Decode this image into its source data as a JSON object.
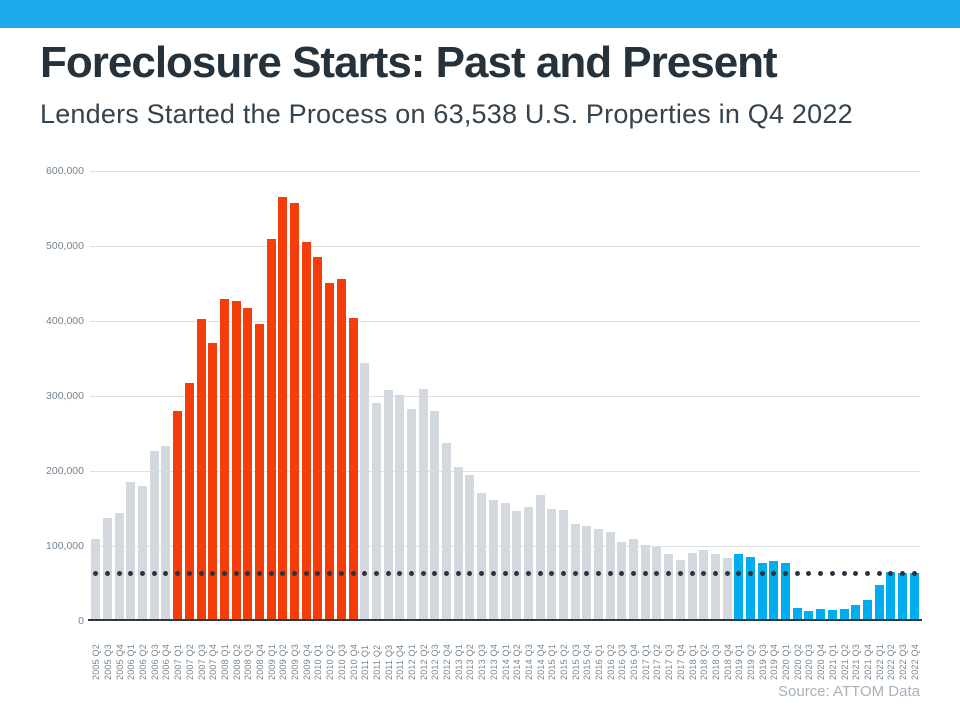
{
  "page": {
    "title": "Foreclosure Starts: Past and Present",
    "subtitle": "Lenders Started the Process on 63,538 U.S. Properties in Q4 2022",
    "source": "Source: ATTOM Data"
  },
  "colors": {
    "banner": "#1BABEB",
    "bar_default": "#D3D9DE",
    "bar_crisis": "#F43D0B",
    "bar_recent": "#00AEEF",
    "reference_dots": "#293440",
    "gridline": "#DCE1E5",
    "axis_line": "#2F3943",
    "axis_text": "#76848F",
    "title_text": "#25313B",
    "subtitle_text": "#34434E",
    "source_text": "#A7B2BB"
  },
  "chart_data": {
    "type": "bar",
    "title": "Foreclosure Starts: Past and Present",
    "subtitle": "Lenders Started the Process on 63,538 U.S. Properties in Q4 2022",
    "xlabel": "",
    "ylabel": "",
    "ylim": [
      0,
      600000
    ],
    "grid": true,
    "legend": "none",
    "source": "Source: ATTOM Data",
    "y_axis": {
      "ticks": [
        {
          "value": 0,
          "label": "0"
        },
        {
          "value": 100000,
          "label": "100,000"
        },
        {
          "value": 200000,
          "label": "200,000"
        },
        {
          "value": 300000,
          "label": "300,000"
        },
        {
          "value": 400000,
          "label": "400,000"
        },
        {
          "value": 500000,
          "label": "500,000"
        },
        {
          "value": 600000,
          "label": "600,000"
        }
      ]
    },
    "reference_line": {
      "value": 63538,
      "style": "dotted",
      "meaning": "Q4 2022 level"
    },
    "segments": {
      "crisis": {
        "from": "2007 Q1",
        "to": "2010 Q4",
        "color_key": "bar_crisis"
      },
      "recent": {
        "from": "2019 Q1",
        "to": "2022 Q4",
        "color_key": "bar_recent"
      }
    },
    "categories": [
      "2005 Q2",
      "2005 Q3",
      "2005 Q4",
      "2006 Q1",
      "2006 Q2",
      "2006 Q3",
      "2006 Q4",
      "2007 Q1",
      "2007 Q2",
      "2007 Q3",
      "2007 Q4",
      "2008 Q1",
      "2008 Q2",
      "2008 Q3",
      "2008 Q4",
      "2009 Q1",
      "2009 Q2",
      "2009 Q3",
      "2009 Q4",
      "2010 Q1",
      "2010 Q2",
      "2010 Q3",
      "2010 Q4",
      "2011 Q1",
      "2011 Q2",
      "2011 Q3",
      "2011 Q4",
      "2012 Q1",
      "2012 Q2",
      "2012 Q3",
      "2012 Q4",
      "2013 Q1",
      "2013 Q2",
      "2013 Q3",
      "2013 Q4",
      "2014 Q1",
      "2014 Q2",
      "2014 Q3",
      "2014 Q4",
      "2015 Q1",
      "2015 Q2",
      "2015 Q3",
      "2015 Q4",
      "2016 Q1",
      "2016 Q2",
      "2016 Q3",
      "2016 Q4",
      "2017 Q1",
      "2017 Q2",
      "2017 Q3",
      "2017 Q4",
      "2018 Q1",
      "2018 Q2",
      "2018 Q3",
      "2018 Q4",
      "2019 Q1",
      "2019 Q2",
      "2019 Q3",
      "2019 Q4",
      "2020 Q1",
      "2020 Q2",
      "2020 Q3",
      "2020 Q4",
      "2021 Q1",
      "2021 Q2",
      "2021 Q3",
      "2021 Q4",
      "2022 Q1",
      "2022 Q2",
      "2022 Q3",
      "2022 Q4"
    ],
    "values": [
      110000,
      137000,
      144000,
      186000,
      180000,
      227000,
      233000,
      280000,
      318000,
      403000,
      371000,
      429000,
      427000,
      418000,
      396000,
      509000,
      566000,
      558000,
      505000,
      485000,
      451000,
      456000,
      404000,
      344000,
      291000,
      308000,
      302000,
      283000,
      309000,
      280000,
      237000,
      206000,
      195000,
      171000,
      161000,
      158000,
      147000,
      152000,
      168000,
      149000,
      148000,
      129000,
      127000,
      123000,
      119000,
      105000,
      109000,
      101000,
      99000,
      90000,
      82000,
      91000,
      95000,
      89000,
      84000,
      89000,
      85000,
      78000,
      80000,
      78000,
      17000,
      14000,
      15500,
      15000,
      16000,
      21000,
      27500,
      47500,
      65000,
      64000,
      63538
    ]
  }
}
